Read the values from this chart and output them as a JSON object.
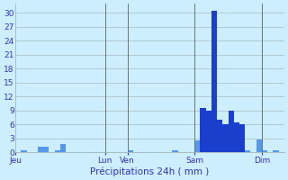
{
  "title": "Précipitations 24h ( mm )",
  "background_color": "#cceeff",
  "bar_color_dark": "#1a3fcc",
  "bar_color_light": "#5599ee",
  "grid_color": "#aabbbb",
  "axis_label_color": "#3333bb",
  "tick_color": "#3333bb",
  "ylim": [
    0,
    32
  ],
  "yticks": [
    0,
    3,
    6,
    9,
    12,
    15,
    18,
    21,
    24,
    27,
    30
  ],
  "num_bars": 48,
  "day_labels": [
    "Jeu",
    "Lun",
    "Ven",
    "Sam",
    "Dim"
  ],
  "day_tick_positions": [
    0,
    16,
    20,
    32,
    44
  ],
  "values": [
    0.0,
    0.4,
    0.0,
    0.0,
    1.2,
    1.2,
    0.0,
    0.4,
    1.8,
    0.0,
    0.0,
    0.0,
    0.0,
    0.0,
    0.0,
    0.0,
    0.0,
    0.0,
    0.0,
    0.0,
    0.4,
    0.0,
    0.0,
    0.0,
    0.0,
    0.0,
    0.0,
    0.0,
    0.4,
    0.0,
    0.0,
    0.0,
    2.5,
    9.5,
    9.0,
    30.5,
    7.0,
    6.0,
    9.0,
    6.5,
    6.0,
    0.4,
    0.0,
    2.8,
    0.4,
    0.0,
    0.4,
    0.0
  ],
  "vline_positions": [
    16,
    20,
    32,
    44
  ],
  "vline_color": "#667777",
  "spine_color": "#99aaaa"
}
